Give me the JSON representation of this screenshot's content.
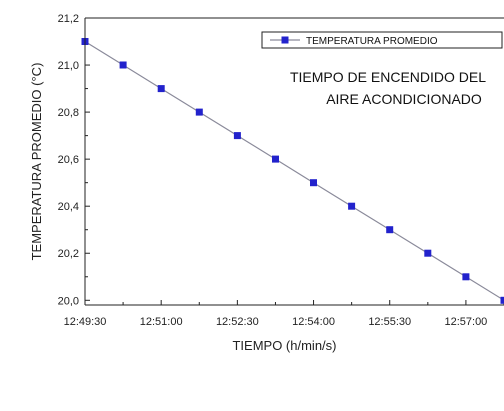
{
  "chart_data": {
    "type": "line",
    "title": "",
    "xlabel": "TIEMPO (h/min/s)",
    "ylabel": "TEMPERATURA PROMEDIO (°C)",
    "x_ticks": [
      "12:49:30",
      "12:51:00",
      "12:52:30",
      "12:54:00",
      "12:55:30",
      "12:57:00"
    ],
    "y_ticks": [
      "20,0",
      "20,2",
      "20,4",
      "20,6",
      "20,8",
      "21,0",
      "21,2"
    ],
    "ylim": [
      19.98,
      21.2
    ],
    "xlim": [
      "12:49:30",
      "12:57:45"
    ],
    "grid": false,
    "legend_position": "top-right",
    "annotation_lines": [
      "TIEMPO DE ENCENDIDO DEL",
      "AIRE ACONDICIONADO"
    ],
    "series": [
      {
        "name": "TEMPERATURA PROMEDIO",
        "color": "#2222cc",
        "line_color": "#8a8a9a",
        "marker": "square",
        "x": [
          "12:49:30",
          "12:50:15",
          "12:51:00",
          "12:51:45",
          "12:52:30",
          "12:53:15",
          "12:54:00",
          "12:54:45",
          "12:55:30",
          "12:56:15",
          "12:57:00",
          "12:57:45"
        ],
        "values": [
          21.1,
          21.0,
          20.9,
          20.8,
          20.7,
          20.6,
          20.5,
          20.4,
          20.3,
          20.2,
          20.1,
          20.0
        ]
      }
    ]
  }
}
